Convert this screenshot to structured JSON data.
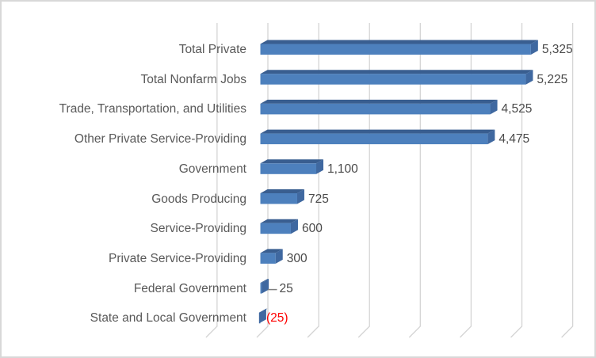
{
  "chart_data": {
    "type": "bar",
    "orientation": "horizontal",
    "style": "3d",
    "title": "",
    "xlabel": "",
    "ylabel": "",
    "categories": [
      "Total Private",
      "Total Nonfarm Jobs",
      "Trade, Transportation, and Utilities",
      "Other Private Service-Providing",
      "Government",
      "Goods Producing",
      "Service-Providing",
      "Private Service-Providing",
      "Federal Government",
      "State and Local Government"
    ],
    "values": [
      5325,
      5225,
      4525,
      4475,
      1100,
      725,
      600,
      300,
      25,
      -25
    ],
    "data_labels": [
      "5,325",
      "5,225",
      "4,525",
      "4,475",
      "1,100",
      "725",
      "600",
      "300",
      "25",
      "(25)"
    ],
    "xlim": [
      -1000,
      6000
    ],
    "grid_step": 1000,
    "grid_on": true,
    "axis_tick_labels_visible": false,
    "legend": "none",
    "leader_dash_category": "Federal Government",
    "colors": {
      "bar_face": "#4d80bd",
      "bar_top": "#395e90",
      "bar_side": "#3f68a0",
      "gridline": "#d4d4d4",
      "category_label": "#595959",
      "value_label": "#4a4a4a",
      "negative_value_label": "#fe0000",
      "leader_dash": "#7f7f7f",
      "chart_border": "#d8d8d8",
      "background": "#ffffff"
    }
  }
}
